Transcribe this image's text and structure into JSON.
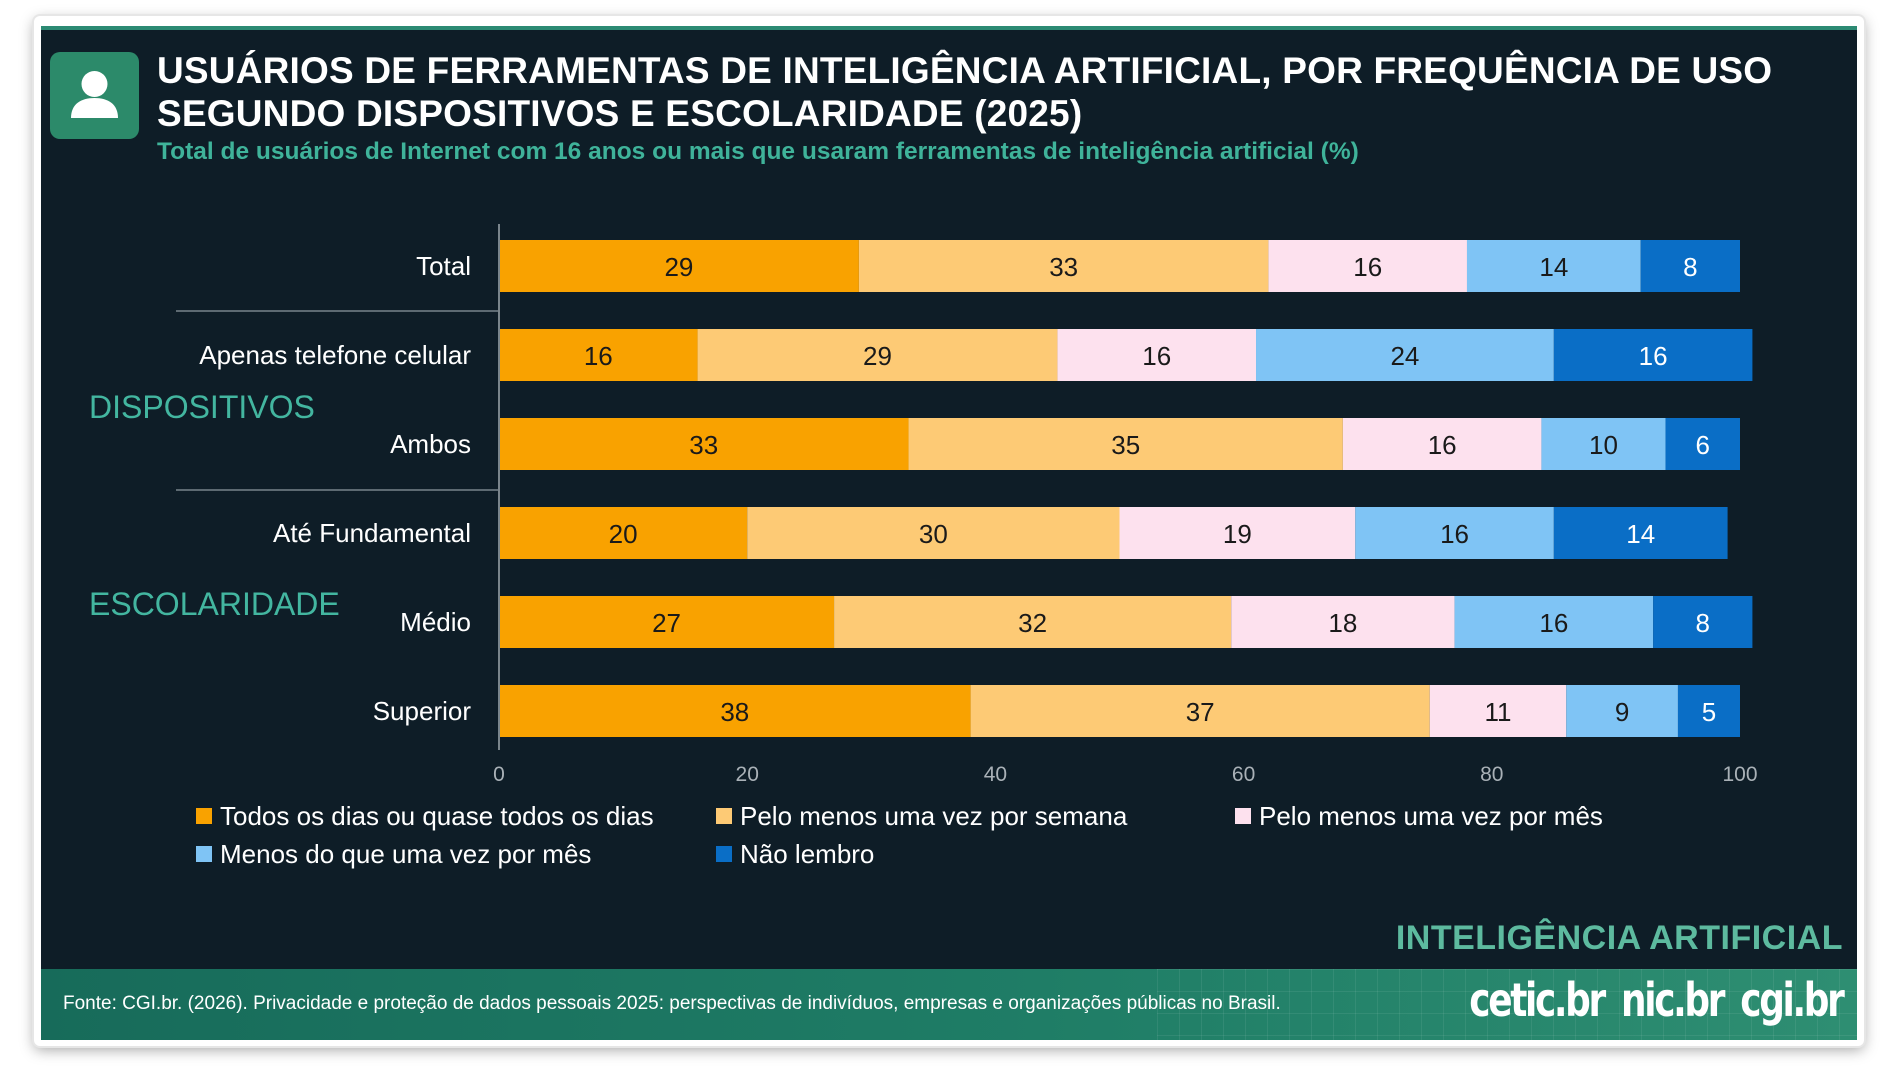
{
  "header": {
    "title_line1": "USUÁRIOS DE FERRAMENTAS DE INTELIGÊNCIA ARTIFICIAL, POR FREQUÊNCIA DE USO",
    "title_line2": "SEGUNDO DISPOSITIVOS E ESCOLARIDADE (2025)",
    "subtitle": "Total de usuários de Internet com 16 anos ou mais que usaram ferramentas de inteligência artificial (%)",
    "icon": "user-icon"
  },
  "groups": {
    "dispositivos": "DISPOSITIVOS",
    "escolaridade": "ESCOLARIDADE"
  },
  "colors": {
    "background": "#0e1d27",
    "accent_green": "#3fb39a",
    "series": [
      "#f9a200",
      "#fdca75",
      "#fde1ee",
      "#7fc4f5",
      "#0a6ec6"
    ]
  },
  "chart_data": {
    "type": "bar",
    "orientation": "horizontal",
    "stacked": true,
    "categories": [
      "Total",
      "Apenas telefone celular",
      "Ambos",
      "Até Fundamental",
      "Médio",
      "Superior"
    ],
    "series": [
      {
        "name": "Todos os dias ou quase todos os dias",
        "values": [
          29,
          16,
          33,
          20,
          27,
          38
        ]
      },
      {
        "name": "Pelo menos uma vez por semana",
        "values": [
          33,
          29,
          35,
          30,
          32,
          37
        ]
      },
      {
        "name": "Pelo menos uma vez por mês",
        "values": [
          16,
          16,
          16,
          19,
          18,
          11
        ]
      },
      {
        "name": "Menos do que uma vez por mês",
        "values": [
          14,
          24,
          10,
          16,
          16,
          9
        ]
      },
      {
        "name": "Não lembro",
        "values": [
          8,
          16,
          6,
          14,
          8,
          5
        ]
      }
    ],
    "x_ticks": [
      0,
      20,
      40,
      60,
      80,
      100
    ],
    "xlim": [
      0,
      100
    ],
    "grid": false,
    "legend_position": "bottom"
  },
  "branding": {
    "section_label": "INTELIGÊNCIA ARTIFICIAL",
    "logos": [
      "cetic.br",
      "nic.br",
      "cgi.br"
    ]
  },
  "footer": {
    "source": "Fonte: CGI.br. (2026). Privacidade e proteção de dados pessoais 2025: perspectivas de indivíduos, empresas e organizações públicas no Brasil."
  }
}
